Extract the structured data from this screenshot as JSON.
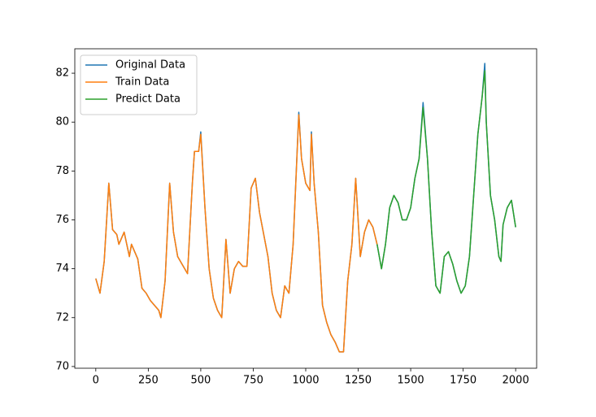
{
  "chart_data": {
    "type": "line",
    "x": [
      0,
      20,
      40,
      62,
      80,
      100,
      110,
      135,
      160,
      170,
      200,
      220,
      240,
      260,
      280,
      300,
      310,
      330,
      352,
      370,
      390,
      410,
      437,
      460,
      470,
      490,
      500,
      520,
      540,
      560,
      580,
      600,
      620,
      640,
      660,
      680,
      700,
      720,
      740,
      760,
      780,
      800,
      820,
      840,
      860,
      880,
      900,
      920,
      940,
      967,
      980,
      1000,
      1020,
      1027,
      1040,
      1060,
      1080,
      1100,
      1120,
      1140,
      1160,
      1180,
      1200,
      1220,
      1238,
      1260,
      1280,
      1300,
      1320,
      1340,
      1361,
      1380,
      1400,
      1420,
      1440,
      1460,
      1480,
      1500,
      1520,
      1540,
      1559,
      1580,
      1600,
      1620,
      1640,
      1660,
      1680,
      1700,
      1720,
      1740,
      1760,
      1780,
      1800,
      1820,
      1840,
      1853,
      1860,
      1880,
      1900,
      1920,
      1930,
      1940,
      1960,
      1980,
      2000
    ],
    "series": [
      {
        "name": "Original Data",
        "color": "#1f77b4",
        "values": [
          73.6,
          73.0,
          74.3,
          77.5,
          75.6,
          75.4,
          75.0,
          75.5,
          74.5,
          75.0,
          74.4,
          73.2,
          73.0,
          72.7,
          72.5,
          72.3,
          72.0,
          73.5,
          77.5,
          75.5,
          74.5,
          74.2,
          73.8,
          77.5,
          78.8,
          78.8,
          79.6,
          76.5,
          74.0,
          72.8,
          72.3,
          72.0,
          75.2,
          73.0,
          74.0,
          74.3,
          74.1,
          74.1,
          77.3,
          77.7,
          76.3,
          75.4,
          74.5,
          73.0,
          72.3,
          72.0,
          73.3,
          73.0,
          75.0,
          80.4,
          78.5,
          77.5,
          77.2,
          79.6,
          77.5,
          75.5,
          72.5,
          71.8,
          71.3,
          71.0,
          70.6,
          70.6,
          73.5,
          75.0,
          77.7,
          74.5,
          75.5,
          76.0,
          75.7,
          75.0,
          74.0,
          75.0,
          76.5,
          77.0,
          76.7,
          76.0,
          76.0,
          76.5,
          77.7,
          78.5,
          80.8,
          78.5,
          75.5,
          73.3,
          73.0,
          74.5,
          74.7,
          74.2,
          73.5,
          73.0,
          73.3,
          74.5,
          77.0,
          79.5,
          81.0,
          82.4,
          80.0,
          77.0,
          76.0,
          74.5,
          74.3,
          75.8,
          76.5,
          76.8,
          75.7
        ]
      },
      {
        "name": "Train Data",
        "color": "#ff7f0e",
        "values": [
          73.6,
          73.0,
          74.3,
          77.5,
          75.6,
          75.4,
          75.0,
          75.5,
          74.5,
          75.0,
          74.4,
          73.2,
          73.0,
          72.7,
          72.5,
          72.3,
          72.0,
          73.5,
          77.5,
          75.5,
          74.5,
          74.2,
          73.8,
          77.5,
          78.8,
          78.8,
          79.5,
          76.5,
          74.0,
          72.8,
          72.3,
          72.0,
          75.2,
          73.0,
          74.0,
          74.3,
          74.1,
          74.1,
          77.3,
          77.7,
          76.3,
          75.4,
          74.5,
          73.0,
          72.3,
          72.0,
          73.3,
          73.0,
          75.0,
          80.3,
          78.5,
          77.5,
          77.2,
          79.5,
          77.5,
          75.5,
          72.5,
          71.8,
          71.3,
          71.0,
          70.6,
          70.6,
          73.5,
          75.0,
          77.7,
          74.5,
          75.5,
          76.0,
          75.7,
          75.0,
          null,
          null,
          null,
          null,
          null,
          null,
          null,
          null,
          null,
          null,
          null,
          null,
          null,
          null,
          null,
          null,
          null,
          null,
          null,
          null,
          null,
          null,
          null,
          null,
          null,
          null,
          null,
          null,
          null,
          null,
          null,
          null,
          null,
          null,
          null
        ]
      },
      {
        "name": "Predict Data",
        "color": "#2ca02c",
        "values": [
          null,
          null,
          null,
          null,
          null,
          null,
          null,
          null,
          null,
          null,
          null,
          null,
          null,
          null,
          null,
          null,
          null,
          null,
          null,
          null,
          null,
          null,
          null,
          null,
          null,
          null,
          null,
          null,
          null,
          null,
          null,
          null,
          null,
          null,
          null,
          null,
          null,
          null,
          null,
          null,
          null,
          null,
          null,
          null,
          null,
          null,
          null,
          null,
          null,
          null,
          null,
          null,
          null,
          null,
          null,
          null,
          null,
          null,
          null,
          null,
          null,
          null,
          null,
          null,
          null,
          null,
          null,
          null,
          null,
          75.0,
          74.0,
          75.0,
          76.5,
          77.0,
          76.7,
          76.0,
          76.0,
          76.5,
          77.7,
          78.5,
          80.6,
          78.5,
          75.5,
          73.3,
          73.0,
          74.5,
          74.7,
          74.2,
          73.5,
          73.0,
          73.3,
          74.5,
          77.0,
          79.5,
          81.0,
          82.1,
          80.0,
          77.0,
          76.0,
          74.5,
          74.3,
          75.8,
          76.5,
          76.8,
          75.7
        ]
      }
    ],
    "xlim": [
      -100,
      2100
    ],
    "xticks": [
      0,
      250,
      500,
      750,
      1000,
      1250,
      1500,
      1750,
      2000
    ],
    "ylim": [
      69.93,
      83.0
    ],
    "yticks": [
      70,
      72,
      74,
      76,
      78,
      80,
      82
    ],
    "legend": "upper left"
  }
}
